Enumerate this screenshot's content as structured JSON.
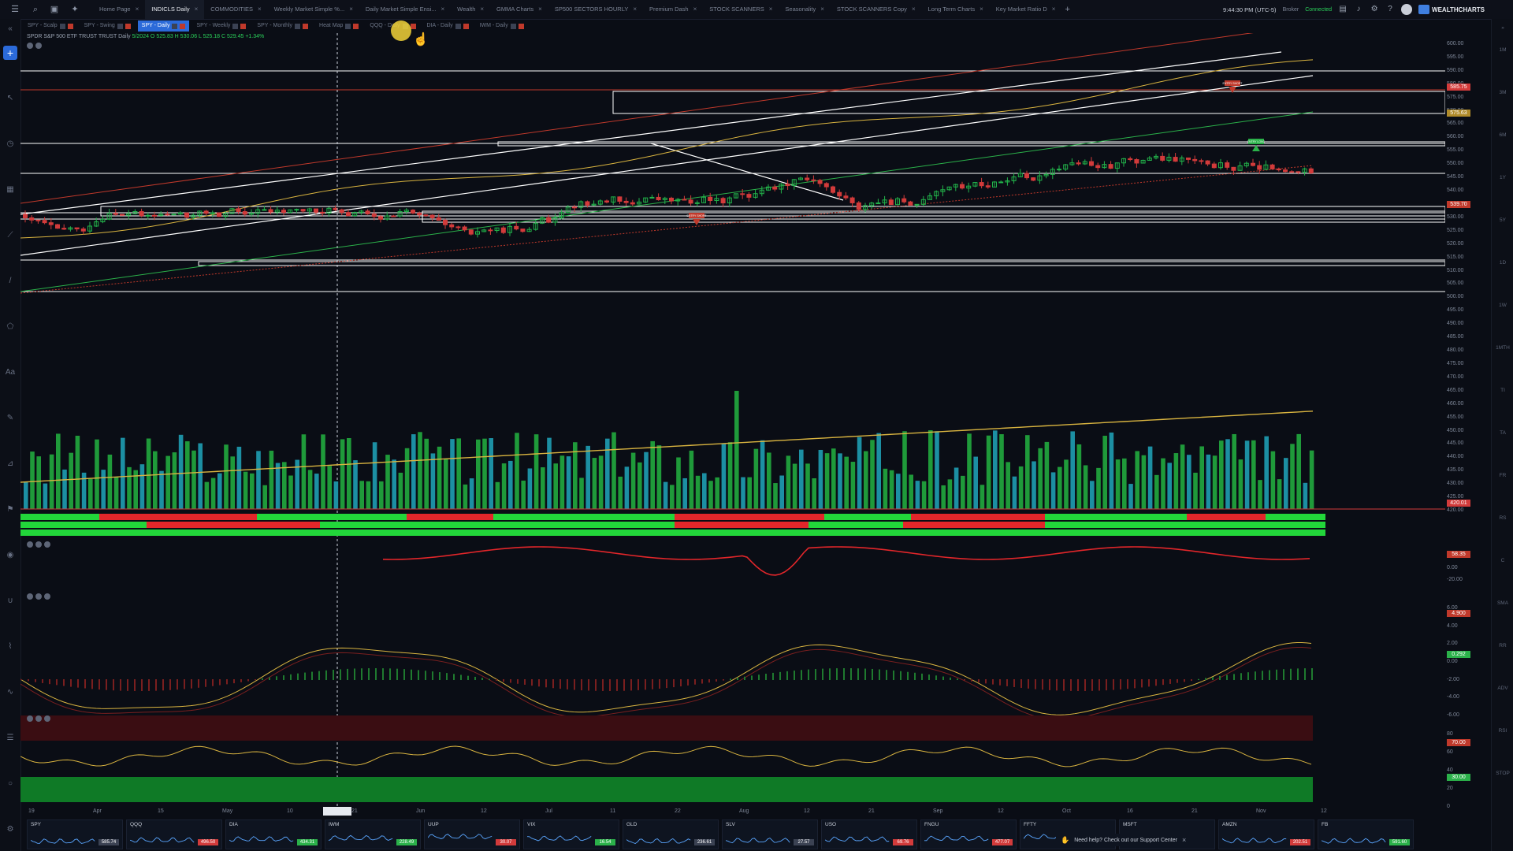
{
  "topbar": {
    "tabs": [
      {
        "label": "Home Page",
        "active": false
      },
      {
        "label": "INDICLS Daily",
        "active": true
      },
      {
        "label": "COMMODITIES",
        "active": false
      },
      {
        "label": "Weekly Market Simple %...",
        "active": false
      },
      {
        "label": "Daily Market Simple Ensi...",
        "active": false
      },
      {
        "label": "Wealth",
        "active": false
      },
      {
        "label": "GMMA Charts",
        "active": false
      },
      {
        "label": "SP500 SECTORS HOURLY",
        "active": false
      },
      {
        "label": "Premium Dash",
        "active": false
      },
      {
        "label": "STOCK SCANNERS",
        "active": false
      },
      {
        "label": "Seasonality",
        "active": false
      },
      {
        "label": "STOCK SCANNERS Copy",
        "active": false
      },
      {
        "label": "Long Term Charts",
        "active": false
      },
      {
        "label": "Key Market Ratio D",
        "active": false
      }
    ],
    "time": "9:44:30 PM (UTC-5)",
    "broker": "Broker",
    "connection": "Connected",
    "brand": "WEALTHCHARTS"
  },
  "chart_tabs": [
    {
      "label": "SPY - Scalp",
      "active": false
    },
    {
      "label": "SPY - Swing",
      "active": false
    },
    {
      "label": "SPY - Daily",
      "active": true
    },
    {
      "label": "SPY - Weekly",
      "active": false
    },
    {
      "label": "SPY - Monthly",
      "active": false
    },
    {
      "label": "Heat Map",
      "active": false
    },
    {
      "label": "QQQ - Daily",
      "active": false
    },
    {
      "label": "DIA - Daily",
      "active": false
    },
    {
      "label": "IWM - Daily",
      "active": false
    }
  ],
  "chart_title": "SPDR S&P 500 ETF TRUST TRUST",
  "chart_title_suffix": "Daily",
  "chart_values": "5/2024 O 525.83 H 530.06 L 525.18 C 529.45 +1.34%",
  "right_rail": [
    "1M",
    "3M",
    "6M",
    "1Y",
    "5Y",
    "1D",
    "1W",
    "1MTH",
    "TI",
    "TA",
    "FR",
    "RS",
    "C",
    "SMA",
    "RR",
    "ADV",
    "RSI",
    "STOP"
  ],
  "price_axis": [
    "600.00",
    "595.00",
    "590.00",
    "580.00",
    "575.00",
    "570.00",
    "565.00",
    "560.00",
    "555.00",
    "550.00",
    "545.00",
    "540.00",
    "535.00",
    "530.00",
    "525.00",
    "520.00",
    "515.00",
    "510.00",
    "505.00",
    "500.00",
    "495.00",
    "490.00",
    "485.00",
    "480.00",
    "475.00",
    "470.00",
    "465.00",
    "460.00",
    "455.00",
    "450.00",
    "445.00",
    "440.00",
    "435.00",
    "430.00",
    "425.00",
    "420.00"
  ],
  "price_badges": [
    {
      "text": "585.75",
      "color": "#d23b3b"
    },
    {
      "text": "575.63",
      "color": "#b08b2a"
    },
    {
      "text": "539.70",
      "color": "#c0392b"
    }
  ],
  "volume_badges": [
    {
      "text": "420.01",
      "color": "#d23b3b"
    }
  ],
  "indicator_badges": {
    "pane1": [
      {
        "text": "58.35",
        "color": "#c0392b"
      }
    ],
    "pane1_ticks": [
      "20.00",
      "0.00",
      "-20.00"
    ],
    "pane2": [
      {
        "text": "4.900",
        "color": "#c0392b"
      },
      {
        "text": "0.292",
        "color": "#2bb14a"
      }
    ],
    "pane2_ticks": [
      "6.00",
      "4.00",
      "2.00",
      "0.00",
      "-2.00",
      "-4.00",
      "-6.00"
    ],
    "pane3": [
      {
        "text": "70.00",
        "color": "#c0392b"
      },
      {
        "text": "30.00",
        "color": "#2bb14a"
      }
    ],
    "pane3_ticks": [
      "80",
      "60",
      "40",
      "20",
      "0"
    ]
  },
  "xaxis": [
    "19",
    "Apr",
    "15",
    "May",
    "10",
    "21",
    "Jun",
    "12",
    "Jul",
    "11",
    "22",
    "Aug",
    "12",
    "21",
    "Sep",
    "12",
    "Oct",
    "16",
    "21",
    "Nov",
    "12"
  ],
  "annotations": {
    "entry_short_1": "ENTRY SHORT",
    "entry_short_2": "ENTRY SHORT",
    "entry_long": "ENTRY LONG"
  },
  "tickers": [
    {
      "name": "SPY",
      "price": "585.74",
      "color": "#3b4253"
    },
    {
      "name": "QQQ",
      "price": "496.50",
      "color": "#d23b3b"
    },
    {
      "name": "DIA",
      "price": "434.31",
      "color": "#2bb14a"
    },
    {
      "name": "IWM",
      "price": "228.49",
      "color": "#2bb14a"
    },
    {
      "name": "UUP",
      "price": "30.07",
      "color": "#d23b3b"
    },
    {
      "name": "VIX",
      "price": "16.54",
      "color": "#2bb14a"
    },
    {
      "name": "GLD",
      "price": "236.61",
      "color": "#3b4253"
    },
    {
      "name": "SLV",
      "price": "27.57",
      "color": "#3b4253"
    },
    {
      "name": "USO",
      "price": "69.76",
      "color": "#d23b3b"
    },
    {
      "name": "FNGU",
      "price": "477.07",
      "color": "#d23b3b"
    },
    {
      "name": "FFTY",
      "price": "",
      "color": "#3b4253"
    },
    {
      "name": "MSFT",
      "price": "",
      "color": "#3b4253"
    },
    {
      "name": "AMZN",
      "price": "202.51",
      "color": "#d23b3b"
    },
    {
      "name": "FB",
      "price": "591.60",
      "color": "#2bb14a"
    }
  ],
  "support_banner": "Need help? Check out our Support Center",
  "colors": {
    "up": "#22b34a",
    "down": "#d23b3b",
    "volume_up": "#1f9a3a",
    "volume_teal": "#1c8fa3",
    "ma_yellow": "#d9b440",
    "accent": "#2b6ad9"
  }
}
